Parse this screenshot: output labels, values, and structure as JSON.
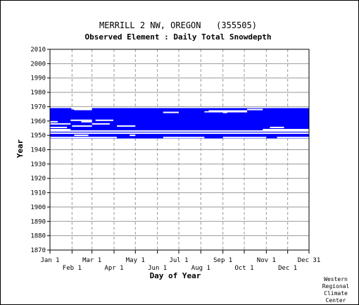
{
  "chart_data": {
    "type": "heatmap",
    "title": "MERRILL 2 NW, OREGON   (355505)",
    "subtitle": "Observed Element : Daily Total Snowdepth",
    "xlabel": "Day of Year",
    "ylabel": "Year",
    "ylim": [
      1870,
      2010
    ],
    "xlim": [
      1,
      365
    ],
    "yticks": [
      1870,
      1880,
      1890,
      1900,
      1910,
      1920,
      1930,
      1940,
      1950,
      1960,
      1970,
      1980,
      1990,
      2000,
      2010
    ],
    "xticks_upper": [
      {
        "label": "Jan 1",
        "day": 1
      },
      {
        "label": "Mar 1",
        "day": 60
      },
      {
        "label": "May 1",
        "day": 121
      },
      {
        "label": "Jul 1",
        "day": 182
      },
      {
        "label": "Sep 1",
        "day": 244
      },
      {
        "label": "Nov 1",
        "day": 305
      },
      {
        "label": "Dec 31",
        "day": 365
      }
    ],
    "xticks_lower": [
      {
        "label": "Feb 1",
        "day": 32
      },
      {
        "label": "Apr 1",
        "day": 91
      },
      {
        "label": "Jun 1",
        "day": 152
      },
      {
        "label": "Aug 1",
        "day": 213
      },
      {
        "label": "Oct 1",
        "day": 274
      },
      {
        "label": "Dec 1",
        "day": 335
      }
    ],
    "grid": true,
    "data_color": "#0000ff",
    "coverage": [
      {
        "year": 1948,
        "day_ranges": [
          [
            1,
            365
          ]
        ]
      },
      {
        "year": 1949,
        "day_ranges": [
          [
            1,
            365
          ]
        ]
      },
      {
        "year": 1950,
        "day_ranges": [
          [
            1,
            365
          ]
        ]
      },
      {
        "year": 1951,
        "day_ranges": [
          [
            1,
            365
          ]
        ]
      },
      {
        "year": 1952,
        "day_ranges": [
          [
            1,
            365
          ]
        ]
      },
      {
        "year": 1953,
        "day_ranges": [
          [
            1,
            365
          ]
        ]
      },
      {
        "year": 1954,
        "day_ranges": [
          [
            1,
            365
          ]
        ]
      },
      {
        "year": 1955,
        "day_ranges": [
          [
            1,
            365
          ]
        ]
      },
      {
        "year": 1956,
        "day_ranges": [
          [
            1,
            365
          ]
        ]
      },
      {
        "year": 1957,
        "day_ranges": [
          [
            1,
            365
          ]
        ]
      },
      {
        "year": 1958,
        "day_ranges": [
          [
            1,
            365
          ]
        ]
      },
      {
        "year": 1959,
        "day_ranges": [
          [
            1,
            365
          ]
        ]
      },
      {
        "year": 1960,
        "day_ranges": [
          [
            1,
            365
          ]
        ]
      },
      {
        "year": 1961,
        "day_ranges": [
          [
            1,
            365
          ]
        ]
      },
      {
        "year": 1962,
        "day_ranges": [
          [
            1,
            365
          ]
        ]
      },
      {
        "year": 1963,
        "day_ranges": [
          [
            1,
            365
          ]
        ]
      },
      {
        "year": 1964,
        "day_ranges": [
          [
            1,
            365
          ]
        ]
      },
      {
        "year": 1965,
        "day_ranges": [
          [
            1,
            365
          ]
        ]
      },
      {
        "year": 1966,
        "day_ranges": [
          [
            1,
            218
          ],
          [
            278,
            365
          ]
        ]
      },
      {
        "year": 1967,
        "day_ranges": [
          [
            1,
            365
          ]
        ]
      },
      {
        "year": 1968,
        "day_ranges": [
          [
            1,
            31
          ],
          [
            60,
            365
          ]
        ]
      }
    ],
    "gaps": [
      {
        "year": 1948,
        "day_ranges": [
          [
            1,
            95
          ],
          [
            160,
            218
          ],
          [
            244,
            305
          ],
          [
            320,
            365
          ]
        ]
      },
      {
        "year": 1949.5,
        "day_ranges": [
          [
            35,
            55
          ],
          [
            113,
            121
          ]
        ]
      },
      {
        "year": 1951,
        "day_ranges": [
          [
            1,
            365
          ]
        ]
      },
      {
        "year": 1952.5,
        "day_ranges": [
          [
            1,
            365
          ]
        ]
      },
      {
        "year": 1953.5,
        "day_ranges": [
          [
            1,
            30
          ],
          [
            300,
            365
          ]
        ]
      },
      {
        "year": 1955,
        "day_ranges": [
          [
            1,
            25
          ],
          [
            310,
            330
          ]
        ]
      },
      {
        "year": 1956,
        "day_ranges": [
          [
            32,
            60
          ],
          [
            95,
            121
          ]
        ]
      },
      {
        "year": 1957.5,
        "day_ranges": [
          [
            1,
            30
          ],
          [
            60,
            85
          ]
        ]
      },
      {
        "year": 1959,
        "day_ranges": [
          [
            1,
            12
          ],
          [
            45,
            60
          ]
        ]
      },
      {
        "year": 1960,
        "day_ranges": [
          [
            30,
            60
          ],
          [
            65,
            90
          ]
        ]
      },
      {
        "year": 1965.5,
        "day_ranges": [
          [
            160,
            182
          ],
          [
            244,
            250
          ]
        ]
      },
      {
        "year": 1966.5,
        "day_ranges": [
          [
            224,
            278
          ]
        ]
      },
      {
        "year": 1967.5,
        "day_ranges": [
          [
            35,
            60
          ],
          [
            278,
            300
          ]
        ]
      }
    ]
  },
  "credit": [
    "Western",
    "Regional",
    "Climate",
    "Center"
  ]
}
